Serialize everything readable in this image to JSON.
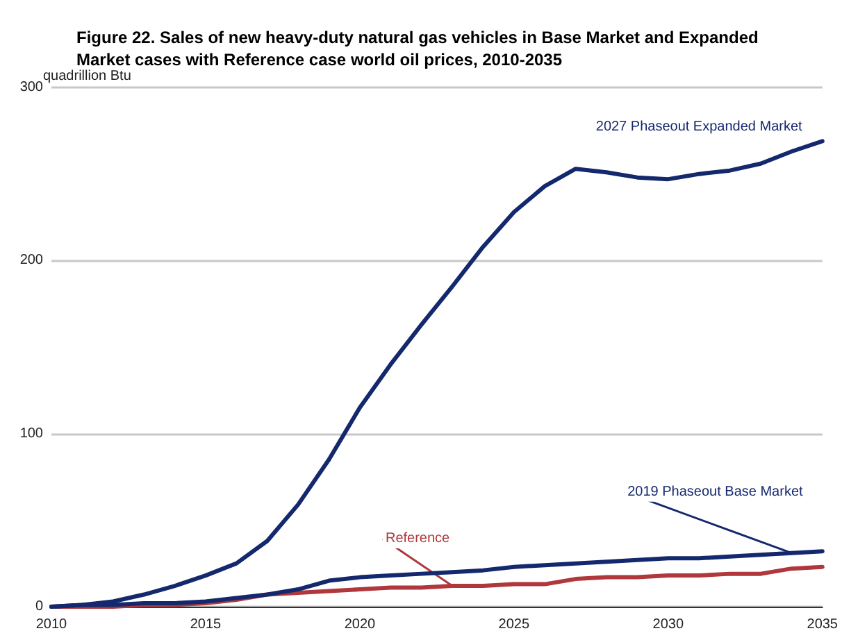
{
  "chart_data": {
    "type": "line",
    "title": "Figure 22. Sales of new heavy-duty natural gas vehicles in Base Market and Expanded\nMarket cases with Reference case world oil prices, 2010-2035",
    "ylabel": "quadrillion Btu",
    "x": [
      2010,
      2011,
      2012,
      2013,
      2014,
      2015,
      2016,
      2017,
      2018,
      2019,
      2020,
      2021,
      2022,
      2023,
      2024,
      2025,
      2026,
      2027,
      2028,
      2029,
      2030,
      2031,
      2032,
      2033,
      2034,
      2035
    ],
    "series": [
      {
        "name": "2027 Phaseout Expanded Market",
        "color": "#14286e",
        "values": [
          0,
          1,
          3,
          7,
          12,
          18,
          25,
          38,
          59,
          85,
          115,
          140,
          163,
          185,
          208,
          228,
          243,
          253,
          251,
          248,
          247,
          250,
          252,
          256,
          263,
          269
        ]
      },
      {
        "name": "2019 Phaseout Base Market",
        "color": "#14286e",
        "values": [
          0,
          1,
          1,
          2,
          2,
          3,
          5,
          7,
          10,
          15,
          17,
          18,
          19,
          20,
          21,
          23,
          24,
          25,
          26,
          27,
          28,
          28,
          29,
          30,
          31,
          32
        ]
      },
      {
        "name": "Reference",
        "color": "#b0383c",
        "values": [
          0,
          0,
          0,
          1,
          1,
          2,
          4,
          7,
          8,
          9,
          10,
          11,
          11,
          12,
          12,
          13,
          13,
          16,
          17,
          17,
          18,
          18,
          19,
          19,
          22,
          23
        ]
      }
    ],
    "xlim": [
      2010,
      2035
    ],
    "xticks": [
      2010,
      2015,
      2020,
      2025,
      2030,
      2035
    ],
    "ylim": [
      0,
      300
    ],
    "yticks": [
      0,
      100,
      200,
      300
    ],
    "grid": "y",
    "legend": false,
    "marker": "none",
    "line_style": "solid"
  }
}
